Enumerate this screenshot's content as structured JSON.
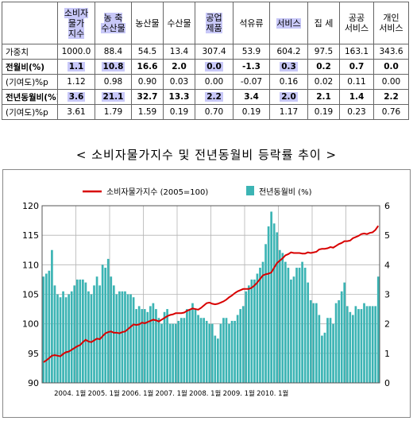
{
  "table": {
    "headers": [
      "",
      "소비자물가지수",
      "농 축수산물",
      "농산물",
      "수산물",
      "공업제품",
      "석유류",
      "서비스",
      "집 세",
      "공공서비스",
      "개인서비스"
    ],
    "header_lines": [
      [
        ""
      ],
      [
        "소비자",
        "물가",
        "지수"
      ],
      [
        "농 축",
        "수산물"
      ],
      [
        "농산물"
      ],
      [
        "수산물"
      ],
      [
        "공업",
        "제품"
      ],
      [
        "석유류"
      ],
      [
        "서비스"
      ],
      [
        "집 세"
      ],
      [
        "공공",
        "서비스"
      ],
      [
        "개인",
        "서비스"
      ]
    ],
    "highlight_cols": [
      1,
      2,
      5,
      7
    ],
    "rows": [
      {
        "label": "가중치",
        "values": [
          "1000.0",
          "88.4",
          "54.5",
          "13.4",
          "307.4",
          "53.9",
          "604.2",
          "97.5",
          "163.1",
          "343.6"
        ],
        "bold": false
      },
      {
        "label": "전월비(%)",
        "values": [
          "1.1",
          "10.8",
          "16.6",
          "2.0",
          "0.0",
          "-1.3",
          "0.3",
          "0.2",
          "0.7",
          "0.0"
        ],
        "bold": true
      },
      {
        "label": "(기여도)%p",
        "values": [
          "1.12",
          "0.98",
          "0.90",
          "0.03",
          "0.00",
          "-0.07",
          "0.16",
          "0.02",
          "0.11",
          "0.00"
        ],
        "bold": false
      },
      {
        "label": "전년동월비(%)",
        "values": [
          "3.6",
          "21.1",
          "32.7",
          "13.3",
          "2.2",
          "3.4",
          "2.0",
          "2.1",
          "1.4",
          "2.2"
        ],
        "bold": true
      },
      {
        "label": "(기여도)%p",
        "values": [
          "3.61",
          "1.79",
          "1.59",
          "0.19",
          "0.70",
          "0.19",
          "1.17",
          "0.19",
          "0.23",
          "0.76"
        ],
        "bold": false
      }
    ]
  },
  "subtitle": "< 소비자물가지수 및 전년동월비 등락률 추이 >",
  "chart_data": {
    "type": "bar+line",
    "legend": {
      "line_label": "소비자물가지수 (2005=100)",
      "bar_label": "전년동월비 (%)",
      "placement": "top"
    },
    "x_tick_labels": [
      "2004. 1월",
      "2005. 1월",
      "2006. 1월",
      "2007. 1월",
      "2008. 1월",
      "2009. 1월",
      "2010. 1월"
    ],
    "y_left": {
      "min": 90,
      "max": 120,
      "ticks": [
        90,
        95,
        100,
        105,
        110,
        115,
        120
      ]
    },
    "y_right": {
      "min": 0,
      "max": 6,
      "ticks": [
        0,
        1,
        2,
        3,
        4,
        5,
        6
      ]
    },
    "grid": true,
    "colors": {
      "line": "#d80000",
      "bar": "#3cb4b4",
      "grid": "#b4b4b4"
    },
    "series": [
      {
        "name": "전년동월비 (%)",
        "axis": "right",
        "type": "bar",
        "values": [
          3.6,
          3.7,
          3.8,
          4.5,
          3.3,
          3.0,
          2.9,
          3.1,
          2.9,
          3.0,
          3.1,
          3.3,
          3.5,
          3.5,
          3.5,
          3.4,
          3.1,
          3.0,
          3.3,
          3.6,
          3.3,
          4.0,
          3.9,
          4.2,
          3.6,
          3.3,
          3.0,
          3.1,
          3.1,
          3.1,
          3.0,
          3.0,
          2.9,
          2.5,
          2.6,
          2.5,
          2.5,
          2.4,
          2.6,
          2.7,
          2.5,
          2.2,
          2.0,
          2.4,
          2.5,
          2.0,
          2.0,
          2.0,
          2.1,
          2.2,
          2.2,
          2.5,
          2.5,
          2.7,
          2.5,
          2.3,
          2.2,
          2.2,
          2.1,
          2.0,
          2.0,
          1.6,
          1.5,
          2.0,
          2.2,
          2.2,
          2.0,
          2.1,
          2.1,
          2.3,
          2.5,
          2.6,
          3.1,
          3.3,
          3.5,
          3.5,
          3.7,
          3.9,
          4.1,
          4.7,
          5.3,
          5.8,
          5.4,
          5.1,
          4.5,
          4.4,
          4.1,
          3.9,
          3.5,
          3.6,
          3.9,
          3.9,
          4.1,
          3.9,
          3.4,
          2.8,
          2.7,
          2.7,
          2.3,
          1.6,
          1.7,
          2.2,
          2.2,
          2.0,
          2.7,
          2.8,
          3.1,
          3.4,
          2.6,
          2.4,
          2.3,
          2.6,
          2.5,
          2.5,
          2.7,
          2.6,
          2.6,
          2.6,
          2.6,
          3.6
        ]
      },
      {
        "name": "소비자물가지수 (2005=100)",
        "axis": "left",
        "type": "line",
        "values": [
          93.5,
          93.8,
          94.2,
          94.6,
          94.7,
          94.6,
          94.5,
          94.9,
          95.2,
          95.3,
          95.6,
          95.9,
          96.2,
          96.4,
          96.9,
          97.3,
          97.0,
          96.9,
          97.2,
          97.5,
          97.4,
          97.9,
          98.4,
          98.6,
          98.7,
          98.5,
          98.5,
          98.4,
          98.6,
          98.7,
          99.1,
          99.5,
          99.9,
          99.8,
          99.9,
          100.2,
          100.1,
          100.3,
          100.5,
          100.7,
          100.6,
          100.4,
          100.7,
          101.0,
          101.3,
          101.5,
          101.6,
          101.8,
          101.8,
          101.8,
          101.9,
          102.2,
          102.4,
          102.6,
          102.5,
          102.4,
          102.7,
          103.1,
          103.5,
          103.6,
          103.4,
          103.3,
          103.4,
          103.6,
          103.8,
          104.1,
          104.5,
          104.8,
          105.2,
          105.5,
          105.7,
          105.9,
          105.9,
          105.9,
          106.1,
          106.5,
          107.0,
          107.6,
          108.2,
          108.4,
          108.5,
          108.7,
          109.5,
          110.3,
          110.7,
          111.1,
          111.6,
          111.8,
          112.1,
          112.0,
          112.0,
          112.0,
          111.9,
          111.9,
          112.1,
          112.0,
          112.1,
          112.2,
          112.6,
          112.7,
          112.7,
          112.8,
          113.0,
          112.9,
          113.2,
          113.5,
          113.7,
          114.0,
          114.0,
          114.1,
          114.5,
          114.7,
          114.9,
          115.2,
          115.3,
          115.2,
          115.4,
          115.5,
          115.9,
          116.6
        ]
      }
    ]
  }
}
